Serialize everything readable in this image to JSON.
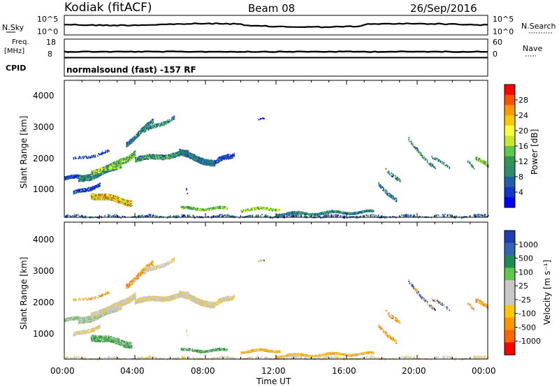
{
  "header": {
    "station": "Kodiak (fitACF)",
    "beam": "Beam 08",
    "date": "26/Sep/2016"
  },
  "strip_panels": {
    "nsky_label": "N.Sky",
    "nsky_ticks": [
      "10^5",
      "10^0"
    ],
    "nsearch_label": "N.Search",
    "nsearch_ticks": [
      "10^5",
      "10^0"
    ],
    "freq_label_1": "Freq.",
    "freq_label_2": "[MHz]",
    "freq_ticks": [
      "18",
      "8"
    ],
    "nave_label": "Nave",
    "nave_ticks": [
      "60",
      "0"
    ],
    "cpid_label": "CPID",
    "cpid_text": "normalsound (fast) -157 RF"
  },
  "chart_data": [
    {
      "type": "heatmap",
      "title": "",
      "ylabel": "Slant Range [km]",
      "xlabel": "Time UT",
      "x_ticks": [
        "00:00",
        "04:00",
        "08:00",
        "12:00",
        "16:00",
        "20:00",
        "00:00"
      ],
      "y_ticks": [
        "1000",
        "2000",
        "3000",
        "4000"
      ],
      "ylim": [
        200,
        4600
      ],
      "colorbar_label": "Power [dB]",
      "colorbar_ticks": [
        "28",
        "24",
        "20",
        "16",
        "12",
        "8",
        "4"
      ],
      "colorbar_colors": [
        "#ff0000",
        "#ff5000",
        "#ff9a00",
        "#ffc800",
        "#ffff3c",
        "#c8e632",
        "#5fc84b",
        "#329650",
        "#2d8c6e",
        "#2060a8",
        "#1436c8",
        "#0000ff"
      ]
    },
    {
      "type": "heatmap",
      "title": "",
      "ylabel": "Slant Range [km]",
      "xlabel": "Time UT",
      "x_ticks": [
        "00:00",
        "04:00",
        "08:00",
        "12:00",
        "16:00",
        "20:00",
        "00:00"
      ],
      "y_ticks": [
        "1000",
        "2000",
        "3000",
        "4000"
      ],
      "ylim": [
        200,
        4600
      ],
      "colorbar_label": "Velocity [m s⁻¹]",
      "colorbar_ticks": [
        "1000",
        "500",
        "100",
        "25",
        "-25",
        "-100",
        "-500",
        "-1000"
      ],
      "colorbar_colors": [
        "#1e3cb4",
        "#3264b4",
        "#1e8c50",
        "#5fc84b",
        "#c8c8c8",
        "#c8c8c8",
        "#ffc800",
        "#ff9600",
        "#ff6400",
        "#ff0000"
      ]
    }
  ]
}
